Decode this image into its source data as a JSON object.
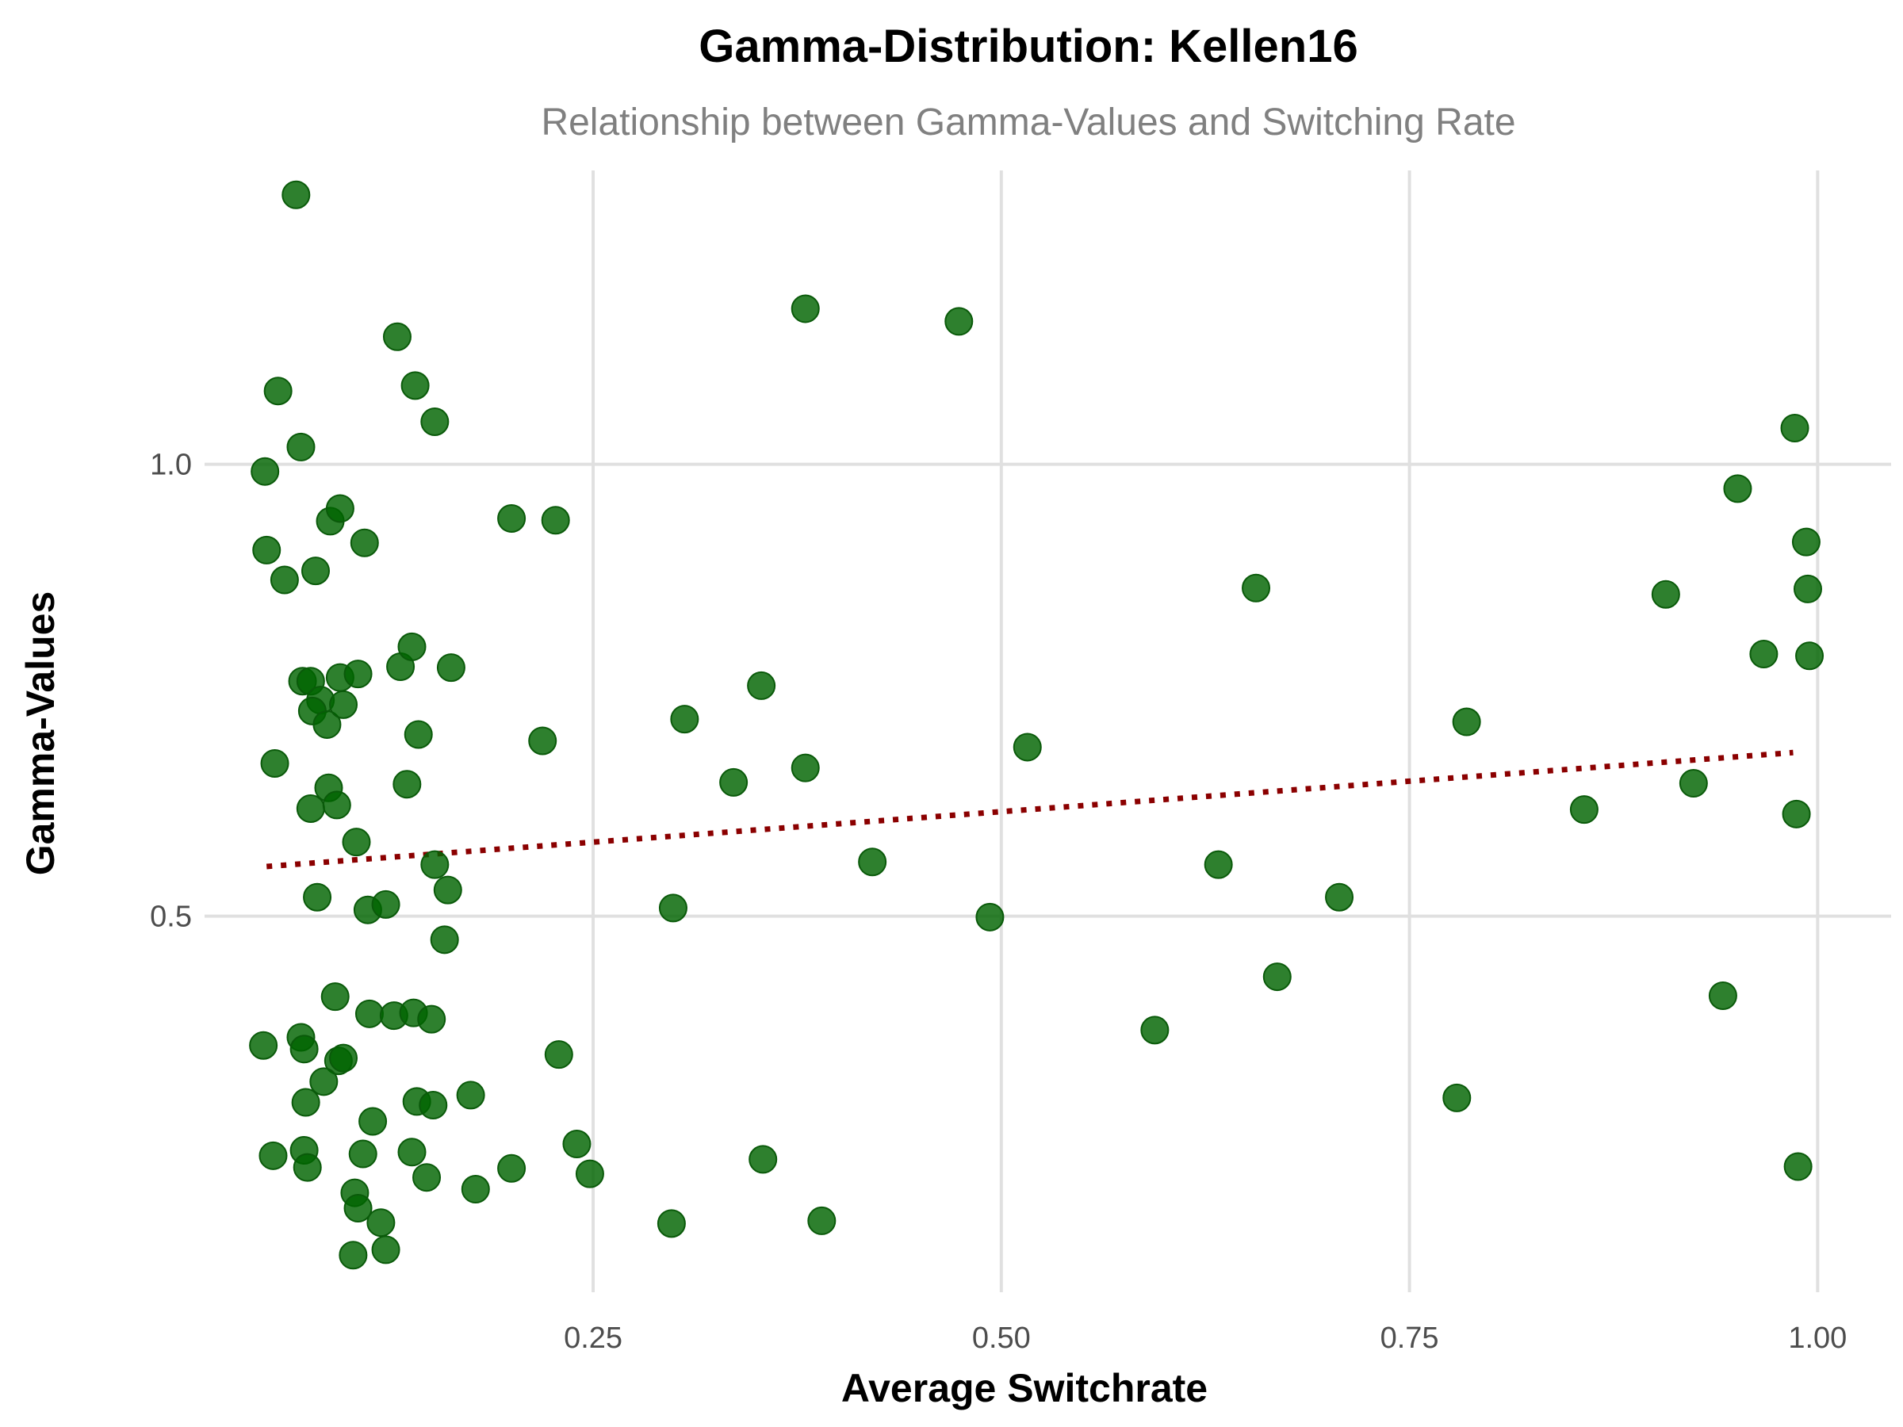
{
  "colors": {
    "point_fill": "#006400",
    "point_stroke": "#0a5a0a",
    "trend_line": "#8b0000",
    "grid": "#e0e0e0",
    "title": "#000000",
    "subtitle": "#808080",
    "tick_label": "#4d4d4d"
  },
  "chart_data": {
    "type": "scatter",
    "title": "Gamma-Distribution: Kellen16",
    "subtitle": "Relationship between Gamma-Values and Switching Rate",
    "xlabel": "Average Switchrate",
    "ylabel": "Gamma-Values",
    "xlim": [
      0.012,
      1.045
    ],
    "ylim": [
      0.084,
      1.325
    ],
    "x_ticks": [
      0.25,
      0.5,
      0.75,
      1.0
    ],
    "x_tick_labels": [
      "0.25",
      "0.50",
      "0.75",
      "1.00"
    ],
    "y_ticks": [
      0.5,
      1.0
    ],
    "y_tick_labels": [
      "0.5",
      "1.0"
    ],
    "grid": true,
    "legend": "none",
    "trend_line": {
      "style": "dotted",
      "x": [
        0.05,
        0.985
      ],
      "y": [
        0.555,
        0.681
      ]
    },
    "series": [
      {
        "points": [
          [
            0.068,
            1.298
          ],
          [
            0.057,
            1.081
          ],
          [
            0.071,
            1.019
          ],
          [
            0.049,
            0.992
          ],
          [
            0.05,
            0.905
          ],
          [
            0.061,
            0.872
          ],
          [
            0.08,
            0.882
          ],
          [
            0.089,
            0.937
          ],
          [
            0.095,
            0.951
          ],
          [
            0.11,
            0.913
          ],
          [
            0.13,
            1.141
          ],
          [
            0.141,
            1.087
          ],
          [
            0.153,
            1.047
          ],
          [
            0.072,
            0.76
          ],
          [
            0.077,
            0.76
          ],
          [
            0.083,
            0.739
          ],
          [
            0.078,
            0.727
          ],
          [
            0.087,
            0.712
          ],
          [
            0.095,
            0.764
          ],
          [
            0.097,
            0.734
          ],
          [
            0.106,
            0.768
          ],
          [
            0.132,
            0.776
          ],
          [
            0.139,
            0.798
          ],
          [
            0.143,
            0.701
          ],
          [
            0.163,
            0.775
          ],
          [
            0.055,
            0.669
          ],
          [
            0.077,
            0.619
          ],
          [
            0.088,
            0.642
          ],
          [
            0.093,
            0.623
          ],
          [
            0.105,
            0.582
          ],
          [
            0.136,
            0.646
          ],
          [
            0.081,
            0.521
          ],
          [
            0.112,
            0.507
          ],
          [
            0.123,
            0.513
          ],
          [
            0.153,
            0.557
          ],
          [
            0.161,
            0.529
          ],
          [
            0.159,
            0.474
          ],
          [
            0.092,
            0.411
          ],
          [
            0.113,
            0.392
          ],
          [
            0.128,
            0.39
          ],
          [
            0.14,
            0.393
          ],
          [
            0.151,
            0.386
          ],
          [
            0.048,
            0.357
          ],
          [
            0.071,
            0.366
          ],
          [
            0.073,
            0.353
          ],
          [
            0.094,
            0.34
          ],
          [
            0.097,
            0.343
          ],
          [
            0.085,
            0.317
          ],
          [
            0.074,
            0.294
          ],
          [
            0.142,
            0.295
          ],
          [
            0.152,
            0.291
          ],
          [
            0.175,
            0.302
          ],
          [
            0.115,
            0.273
          ],
          [
            0.054,
            0.235
          ],
          [
            0.073,
            0.241
          ],
          [
            0.075,
            0.222
          ],
          [
            0.109,
            0.237
          ],
          [
            0.139,
            0.239
          ],
          [
            0.148,
            0.211
          ],
          [
            0.178,
            0.198
          ],
          [
            0.104,
            0.194
          ],
          [
            0.106,
            0.177
          ],
          [
            0.12,
            0.161
          ],
          [
            0.103,
            0.125
          ],
          [
            0.123,
            0.131
          ],
          [
            0.2,
            0.94
          ],
          [
            0.227,
            0.938
          ],
          [
            0.219,
            0.694
          ],
          [
            0.229,
            0.347
          ],
          [
            0.2,
            0.221
          ],
          [
            0.24,
            0.248
          ],
          [
            0.248,
            0.215
          ],
          [
            0.298,
            0.16
          ],
          [
            0.299,
            0.509
          ],
          [
            0.306,
            0.718
          ],
          [
            0.336,
            0.648
          ],
          [
            0.353,
            0.755
          ],
          [
            0.354,
            0.231
          ],
          [
            0.38,
            1.172
          ],
          [
            0.38,
            0.664
          ],
          [
            0.39,
            0.163
          ],
          [
            0.421,
            0.56
          ],
          [
            0.474,
            1.158
          ],
          [
            0.493,
            0.499
          ],
          [
            0.516,
            0.687
          ],
          [
            0.594,
            0.374
          ],
          [
            0.633,
            0.557
          ],
          [
            0.656,
            0.863
          ],
          [
            0.669,
            0.433
          ],
          [
            0.707,
            0.521
          ],
          [
            0.779,
            0.299
          ],
          [
            0.785,
            0.715
          ],
          [
            0.857,
            0.618
          ],
          [
            0.907,
            0.856
          ],
          [
            0.924,
            0.647
          ],
          [
            0.942,
            0.412
          ],
          [
            0.951,
            0.973
          ],
          [
            0.967,
            0.79
          ],
          [
            0.986,
            1.04
          ],
          [
            0.987,
            0.613
          ],
          [
            0.988,
            0.223
          ],
          [
            0.993,
            0.914
          ],
          [
            0.994,
            0.862
          ],
          [
            0.995,
            0.788
          ]
        ]
      }
    ]
  }
}
